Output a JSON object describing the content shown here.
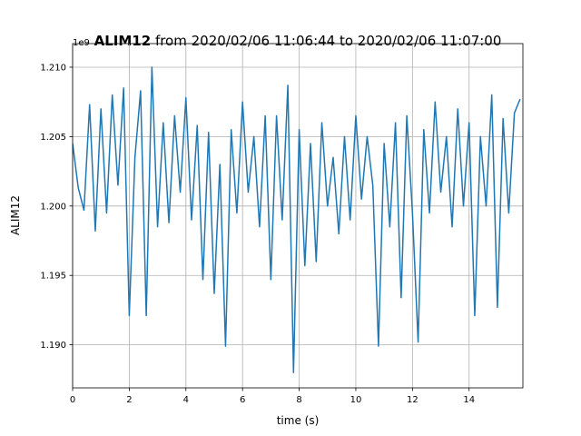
{
  "chart_data": {
    "type": "line",
    "title_name": "ALIM12",
    "title_range": "from 2020/02/06 11:06:44 to 2020/02/06 11:07:00",
    "x_label": "time (s)",
    "y_label": "ALIM12",
    "y_offset": "1e9",
    "x": [
      0.0,
      0.2,
      0.4,
      0.6,
      0.8,
      1.0,
      1.2,
      1.4,
      1.6,
      1.8,
      2.0,
      2.2,
      2.4,
      2.6,
      2.8,
      3.0,
      3.2,
      3.4,
      3.6,
      3.8,
      4.0,
      4.2,
      4.4,
      4.6,
      4.8,
      5.0,
      5.2,
      5.4,
      5.6,
      5.8,
      6.0,
      6.2,
      6.4,
      6.6,
      6.8,
      7.0,
      7.2,
      7.4,
      7.6,
      7.8,
      8.0,
      8.2,
      8.4,
      8.6,
      8.8,
      9.0,
      9.2,
      9.4,
      9.6,
      9.8,
      10.0,
      10.2,
      10.4,
      10.6,
      10.8,
      11.0,
      11.2,
      11.4,
      11.6,
      11.8,
      12.0,
      12.2,
      12.4,
      12.6,
      12.8,
      13.0,
      13.2,
      13.4,
      13.6,
      13.8,
      14.0,
      14.2,
      14.4,
      14.6,
      14.8,
      15.0,
      15.2,
      15.4,
      15.6,
      15.8
    ],
    "series": [
      {
        "name": "ALIM12",
        "color": "#1f77b4",
        "values": [
          1.2045,
          1.2013,
          1.1997,
          1.2073,
          1.1982,
          1.207,
          1.1995,
          1.208,
          1.2015,
          1.2085,
          1.1921,
          1.2035,
          1.2083,
          1.1921,
          1.21,
          1.1985,
          1.206,
          1.1988,
          1.2065,
          1.201,
          1.2078,
          1.199,
          1.2058,
          1.1947,
          1.2053,
          1.1937,
          1.203,
          1.1899,
          1.2055,
          1.1995,
          1.2075,
          1.201,
          1.205,
          1.1985,
          1.2065,
          1.1947,
          1.2065,
          1.199,
          1.2087,
          1.188,
          1.2055,
          1.1957,
          1.2045,
          1.196,
          1.206,
          1.2,
          1.2035,
          1.198,
          1.205,
          1.199,
          1.2065,
          1.2005,
          1.205,
          1.2015,
          1.1899,
          1.2045,
          1.1985,
          1.206,
          1.1934,
          1.2065,
          1.1995,
          1.1902,
          1.2055,
          1.1995,
          1.2075,
          1.201,
          1.205,
          1.1985,
          1.207,
          1.2,
          1.206,
          1.1921,
          1.205,
          1.2,
          1.208,
          1.1927,
          1.2063,
          1.1995,
          1.2067,
          1.2077
        ]
      }
    ],
    "xlim": [
      0,
      15.9
    ],
    "xticks": [
      0,
      2,
      4,
      6,
      8,
      10,
      12,
      14
    ],
    "ylim": [
      1.1869,
      1.2117
    ],
    "yticks": [
      {
        "value": 1.19,
        "label": "1.190"
      },
      {
        "value": 1.195,
        "label": "1.195"
      },
      {
        "value": 1.2,
        "label": "1.200"
      },
      {
        "value": 1.205,
        "label": "1.205"
      },
      {
        "value": 1.21,
        "label": "1.210"
      }
    ],
    "grid": true
  }
}
